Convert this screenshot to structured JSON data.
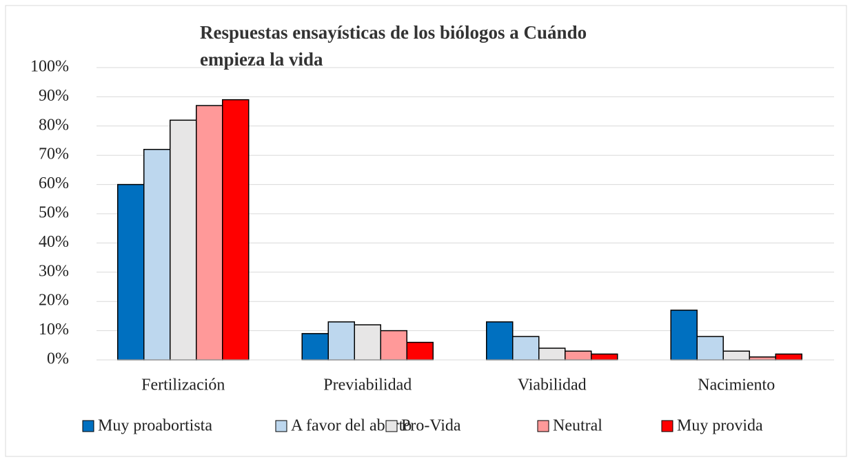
{
  "chart_data": {
    "type": "bar",
    "title": "Respuestas ensayísticas de los biólogos a Cuándo empieza la vida",
    "categories": [
      "Fertilización",
      "Previabilidad",
      "Viabilidad",
      "Nacimiento"
    ],
    "series": [
      {
        "name": "Muy proabortista",
        "color": "#0070c0",
        "values": [
          60,
          9,
          13,
          17
        ]
      },
      {
        "name": "A favor del aborto",
        "color": "#bdd7ee",
        "values": [
          72,
          13,
          8,
          8
        ]
      },
      {
        "name": "Pro-Vida",
        "color": "#e7e6e6",
        "values": [
          82,
          12,
          4,
          3
        ]
      },
      {
        "name": "Neutral",
        "color": "#ff9999",
        "values": [
          87,
          10,
          3,
          1
        ]
      },
      {
        "name": "Muy provida",
        "color": "#ff0000",
        "values": [
          89,
          6,
          2,
          2
        ]
      }
    ],
    "ylim": [
      0,
      100
    ],
    "yticks": [
      {
        "value": 0,
        "label": "0%"
      },
      {
        "value": 10,
        "label": "10%"
      },
      {
        "value": 20,
        "label": "20%"
      },
      {
        "value": 30,
        "label": "30%"
      },
      {
        "value": 40,
        "label": "40%"
      },
      {
        "value": 50,
        "label": "50%"
      },
      {
        "value": 60,
        "label": "60%"
      },
      {
        "value": 70,
        "label": "70%"
      },
      {
        "value": 80,
        "label": "80%"
      },
      {
        "value": 90,
        "label": "90%"
      },
      {
        "value": 100,
        "label": "100%"
      }
    ],
    "grid": true,
    "legend": "bottom"
  }
}
